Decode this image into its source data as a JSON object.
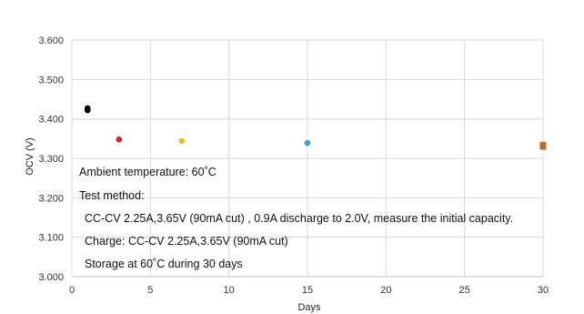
{
  "chart_data": {
    "type": "scatter",
    "xlabel": "Days",
    "ylabel": "OCV (V)",
    "xlim": [
      0,
      30
    ],
    "ylim": [
      3.0,
      3.6
    ],
    "xticks": [
      "0",
      "5",
      "10",
      "15",
      "20",
      "25",
      "30"
    ],
    "yticks": [
      "3.000",
      "3.100",
      "3.200",
      "3.300",
      "3.400",
      "3.500",
      "3.600"
    ],
    "grid": true,
    "points": [
      {
        "x": 1,
        "y": 3.427,
        "color": "#000000",
        "marker": "circle"
      },
      {
        "x": 1,
        "y": 3.422,
        "color": "#000000",
        "marker": "circle"
      },
      {
        "x": 3,
        "y": 3.348,
        "color": "#e02020",
        "marker": "circle"
      },
      {
        "x": 7,
        "y": 3.344,
        "color": "#f5b820",
        "marker": "circle"
      },
      {
        "x": 15,
        "y": 3.339,
        "color": "#2ea3dd",
        "marker": "circle"
      },
      {
        "x": 30,
        "y": 3.334,
        "color": "#c0692a",
        "marker": "square"
      },
      {
        "x": 30,
        "y": 3.33,
        "color": "#c0692a",
        "marker": "square"
      }
    ],
    "annotations": [
      "Ambient temperature: 60˚C",
      "Test method:",
      "CC-CV 2.25A,3.65V (90mA cut) , 0.9A discharge to 2.0V, measure the initial capacity.",
      "Charge: CC-CV 2.25A,3.65V (90mA cut)",
      "Storage at 60˚C during 30 days"
    ]
  }
}
